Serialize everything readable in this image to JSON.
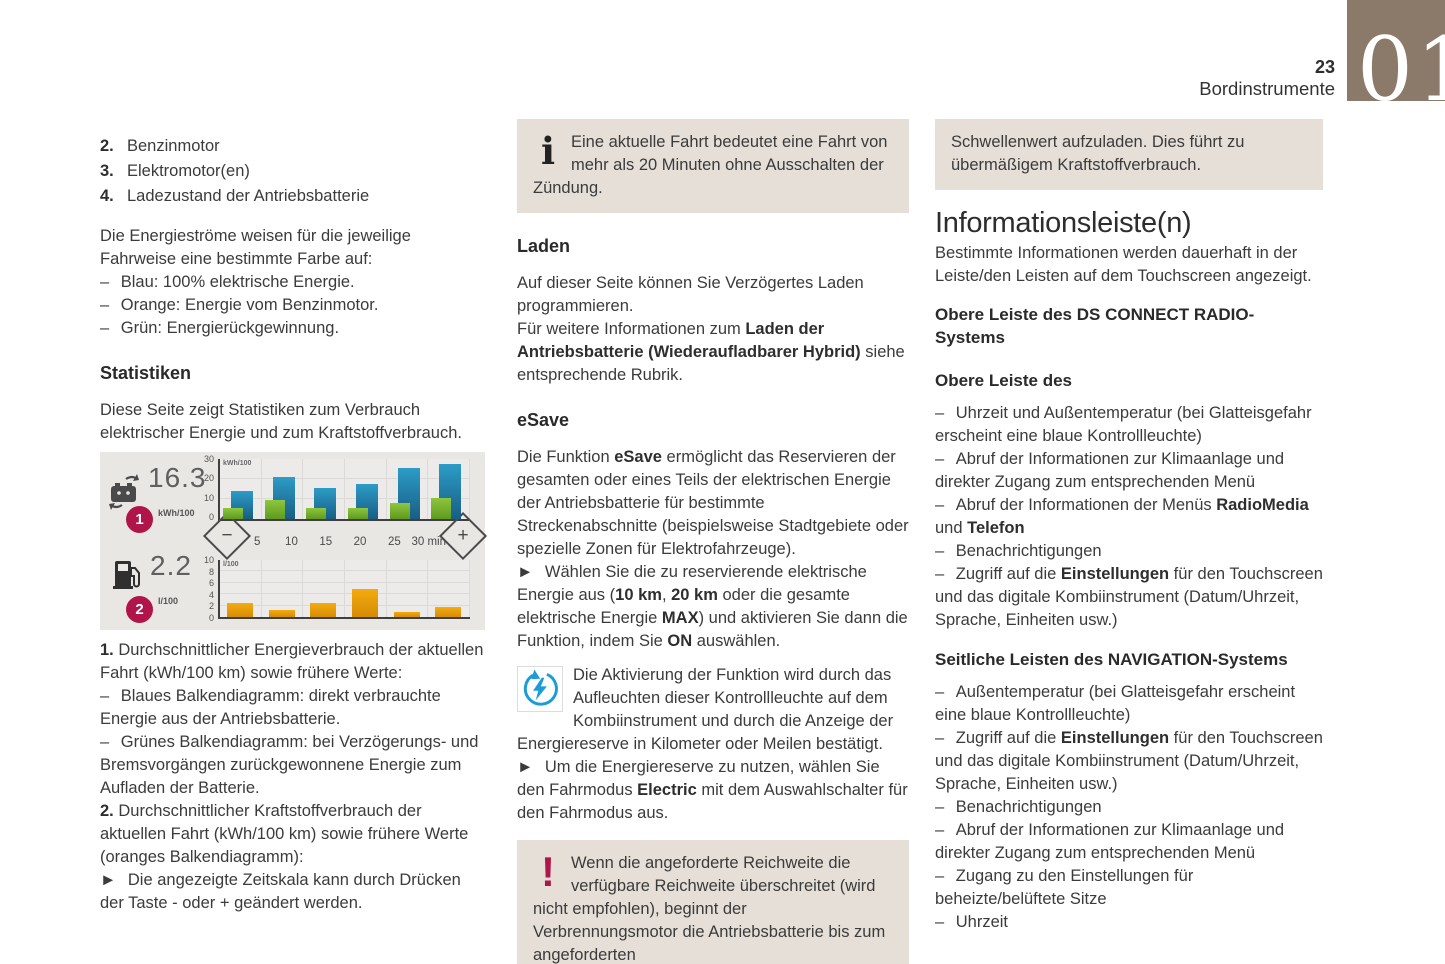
{
  "header": {
    "page_number": "23",
    "section": "Bordinstrumente",
    "chapter": "01"
  },
  "icons": {
    "info": "i",
    "warning": "!"
  },
  "colors": {
    "accent_crimson": "#b0154a",
    "chapter_tab": "#8b7a69",
    "box_background": "#e5dfd7",
    "panel_background": "#e9e7e4"
  },
  "left": {
    "items": [
      {
        "num": "2.",
        "label": "Benzinmotor"
      },
      {
        "num": "3.",
        "label": "Elektromotor(en)"
      },
      {
        "num": "4.",
        "label": "Ladezustand der Antriebsbatterie"
      }
    ],
    "intro": "Die Energieströme weisen für die jeweilige Fahrweise eine bestimmte Farbe auf:",
    "bullets": [
      [
        {
          "t": "–  "
        },
        {
          "t": "Blau: 100% elektrische Energie."
        }
      ],
      [
        {
          "t": "–  "
        },
        {
          "t": "Orange: Energie vom Benzinmotor."
        }
      ],
      [
        {
          "t": "–  "
        },
        {
          "t": "Grün: Energierückgewinnung."
        }
      ]
    ],
    "statistics_heading": "Statistiken",
    "stats_para": "Diese Seite zeigt Statistiken zum Verbrauch elektrischer Energie und zum Kraftstoffverbrauch.",
    "caption": [
      [
        {
          "t": "1. ",
          "b": true
        },
        {
          "t": "Durchschnittlicher Energieverbrauch der aktuellen Fahrt (kWh/100 km) sowie frühere Werte:"
        }
      ],
      [
        {
          "t": "–  "
        },
        {
          "t": "Blaues Balkendiagramm: direkt verbrauchte Energie aus der Antriebsbatterie."
        }
      ],
      [
        {
          "t": "–  "
        },
        {
          "t": "Grünes Balkendiagramm: bei Verzögerungs- und Bremsvorgängen zurückgewonnene Energie zum Aufladen der Batterie."
        }
      ],
      [
        {
          "t": "2. ",
          "b": true
        },
        {
          "t": "Durchschnittlicher Kraftstoffverbrauch der aktuellen Fahrt (kWh/100 km) sowie frühere Werte (oranges Balkendiagramm):"
        }
      ],
      [
        {
          "t": "►  "
        },
        {
          "t": "Die angezeigte Zeitskala kann durch Drücken der Taste - oder + geändert werden."
        }
      ]
    ]
  },
  "figure": {
    "energy_value": "16.3",
    "energy_unit": "kWh/100",
    "energy_badge": "1",
    "fuel_value": "2.2",
    "fuel_unit": "l/100",
    "fuel_badge": "2",
    "minus": "−",
    "plus": "+",
    "time_labels": [
      "5",
      "10",
      "15",
      "20",
      "25",
      "30 min"
    ],
    "energy_axis": {
      "label": "kWh/100",
      "max": 30,
      "ticks": [
        "30",
        "20",
        "10",
        "0"
      ]
    },
    "fuel_axis": {
      "label": "l/100",
      "max": 10,
      "ticks": [
        "10",
        "8",
        "6",
        "4",
        "2",
        "0"
      ]
    },
    "energy_series": {
      "blue": [
        14,
        21,
        15.5,
        17.5,
        25.5,
        27.5
      ],
      "green": [
        5.5,
        9.5,
        5.5,
        5.5,
        8,
        10.5
      ]
    },
    "fuel_series": [
      2.4,
      1.3,
      2.4,
      4.9,
      0.9,
      1.8
    ],
    "colors": {
      "blue": [
        "#2d9cc7",
        "#185e84"
      ],
      "green": [
        "#8ec63e",
        "#5e9a1f"
      ],
      "orange": [
        "#f4ab10",
        "#d68c05"
      ],
      "badge": "#b0154a"
    }
  },
  "middle": {
    "info_box": "Eine aktuelle Fahrt bedeutet eine Fahrt von mehr als 20 Minuten ohne Ausschalten der Zündung.",
    "laden_heading": "Laden",
    "laden_p1": "Auf dieser Seite können Sie Verzögertes Laden programmieren.",
    "laden_p2": [
      {
        "t": "Für weitere Informationen zum "
      },
      {
        "t": "Laden der Antriebsbatterie (Wiederaufladbarer Hybrid)",
        "b": true
      },
      {
        "t": " siehe entsprechende Rubrik."
      }
    ],
    "esave_heading": "eSave",
    "esave_p1": [
      {
        "t": "Die Funktion "
      },
      {
        "t": "eSave",
        "b": true
      },
      {
        "t": " ermöglicht das Reservieren der gesamten oder eines Teils der elektrischen Energie der Antriebsbatterie für bestimmte Streckenabschnitte (beispielsweise Stadtgebiete oder spezielle Zonen für Elektrofahrzeuge)."
      }
    ],
    "esave_p2": [
      {
        "t": "►  "
      },
      {
        "t": "Wählen Sie die zu reservierende elektrische Energie aus ("
      },
      {
        "t": "10 km",
        "b": true
      },
      {
        "t": ", "
      },
      {
        "t": "20 km",
        "b": true
      },
      {
        "t": " oder die gesamte elektrische Energie "
      },
      {
        "t": "MAX",
        "b": true
      },
      {
        "t": ") und aktivieren Sie dann die Funktion, indem Sie "
      },
      {
        "t": "ON",
        "b": true
      },
      {
        "t": " auswählen."
      }
    ],
    "esave_p3": "Die Aktivierung der Funktion wird durch das Aufleuchten dieser Kontrollleuchte auf dem Kombiinstrument und durch die Anzeige der Energiereserve in Kilometer oder Meilen bestätigt.",
    "esave_p4": [
      {
        "t": "►  "
      },
      {
        "t": "Um die Energiereserve zu nutzen, wählen Sie den Fahrmodus "
      },
      {
        "t": "Electric",
        "b": true
      },
      {
        "t": " mit dem Auswahlschalter für den Fahrmodus aus."
      }
    ],
    "warning_box": "Wenn die angeforderte Reichweite die verfügbare Reichweite überschreitet (wird nicht empfohlen), beginnt der Verbrennungsmotor die Antriebsbatterie bis zum angeforderten"
  },
  "right": {
    "box_continuation": "Schwellenwert aufzuladen. Dies führt zu übermäßigem Kraftstoffverbrauch.",
    "title": "Informationsleiste(n)",
    "intro": "Bestimmte Informationen werden dauerhaft in der Leiste/den Leisten auf dem Touchscreen angezeigt.",
    "sub1": "Obere Leiste des DS CONNECT RADIO-Systems",
    "sub2": "Obere Leiste des",
    "list1": [
      [
        {
          "t": "–  "
        },
        {
          "t": "Uhrzeit und Außentemperatur (bei Glatteisgefahr erscheint eine blaue Kontrollleuchte)"
        }
      ],
      [
        {
          "t": "–  "
        },
        {
          "t": "Abruf der Informationen zur Klimaanlage und direkter Zugang zum entsprechenden Menü"
        }
      ],
      [
        {
          "t": "–  "
        },
        {
          "t": "Abruf der Informationen der Menüs "
        },
        {
          "t": "RadioMedia",
          "b": true
        },
        {
          "t": " und "
        },
        {
          "t": "Telefon",
          "b": true
        }
      ],
      [
        {
          "t": "–  "
        },
        {
          "t": "Benachrichtigungen"
        }
      ],
      [
        {
          "t": "–  "
        },
        {
          "t": "Zugriff auf die "
        },
        {
          "t": "Einstellungen",
          "b": true
        },
        {
          "t": " für den Touchscreen und das digitale Kombiinstrument (Datum/Uhrzeit, Sprache, Einheiten usw.)"
        }
      ]
    ],
    "sub3": "Seitliche Leisten des NAVIGATION-Systems",
    "list2": [
      [
        {
          "t": "–  "
        },
        {
          "t": "Außentemperatur (bei Glatteisgefahr erscheint eine blaue Kontrollleuchte)"
        }
      ],
      [
        {
          "t": "–  "
        },
        {
          "t": "Zugriff auf die "
        },
        {
          "t": "Einstellungen",
          "b": true
        },
        {
          "t": " für den Touchscreen und das digitale Kombiinstrument (Datum/Uhrzeit, Sprache, Einheiten usw.)"
        }
      ],
      [
        {
          "t": "–  "
        },
        {
          "t": "Benachrichtigungen"
        }
      ],
      [
        {
          "t": "–  "
        },
        {
          "t": "Abruf der Informationen zur Klimaanlage und direkter Zugang zum entsprechenden Menü"
        }
      ],
      [
        {
          "t": "–  "
        },
        {
          "t": "Zugang zu den Einstellungen für beheizte/belüftete Sitze"
        }
      ],
      [
        {
          "t": "–  "
        },
        {
          "t": "Uhrzeit"
        }
      ]
    ]
  }
}
